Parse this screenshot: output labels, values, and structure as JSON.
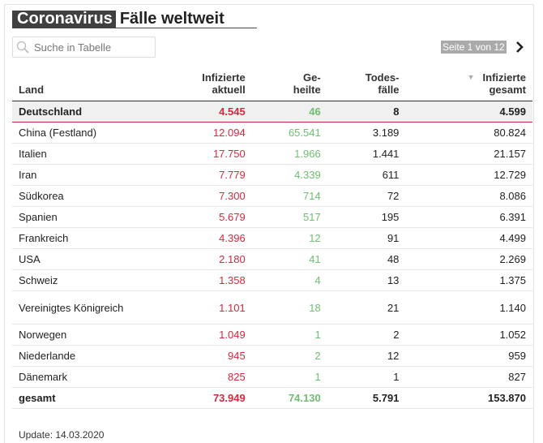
{
  "title": {
    "part1": "Coronavirus",
    "part2": "Fälle weltweit"
  },
  "search": {
    "placeholder": "Suche in Tabelle",
    "icon": "search-icon"
  },
  "pager": {
    "text": "Seite 1 von 12",
    "next_icon": "chevron-right-icon"
  },
  "colors": {
    "infected": "#d9273e",
    "recovered": "#6cc06e"
  },
  "table": {
    "headers": [
      {
        "l1": "",
        "l2": "Land"
      },
      {
        "l1": "Infizierte",
        "l2": "aktuell"
      },
      {
        "l1": "Ge-",
        "l2": "heilte"
      },
      {
        "l1": "Todes-",
        "l2": "fälle"
      },
      {
        "l1": "Infizierte",
        "l2": "gesamt",
        "sorted": "desc"
      }
    ],
    "rows": [
      [
        "Deutschland",
        "4.545",
        "46",
        "8",
        "4.599"
      ],
      [
        "China (Festland)",
        "12.094",
        "65.541",
        "3.189",
        "80.824"
      ],
      [
        "Italien",
        "17.750",
        "1.966",
        "1.441",
        "21.157"
      ],
      [
        "Iran",
        "7.779",
        "4.339",
        "611",
        "12.729"
      ],
      [
        "Südkorea",
        "7.300",
        "714",
        "72",
        "8.086"
      ],
      [
        "Spanien",
        "5.679",
        "517",
        "195",
        "6.391"
      ],
      [
        "Frankreich",
        "4.396",
        "12",
        "91",
        "4.499"
      ],
      [
        "USA",
        "2.180",
        "41",
        "48",
        "2.269"
      ],
      [
        "Schweiz",
        "1.358",
        "4",
        "13",
        "1.375"
      ],
      [
        "Vereinigtes Königreich",
        "1.101",
        "18",
        "21",
        "1.140"
      ],
      [
        "Norwegen",
        "1.049",
        "1",
        "2",
        "1.052"
      ],
      [
        "Niederlande",
        "945",
        "2",
        "12",
        "959"
      ],
      [
        "Dänemark",
        "825",
        "1",
        "1",
        "827"
      ]
    ],
    "total": [
      "gesamt",
      "73.949",
      "74.130",
      "5.791",
      "153.870"
    ]
  },
  "footer": "Update: 14.03.2020"
}
